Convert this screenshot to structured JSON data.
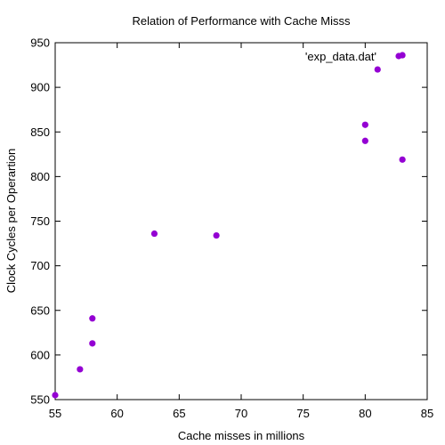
{
  "chart_data": {
    "type": "scatter",
    "title": "Relation of Performance with Cache Misss",
    "xlabel": "Cache misses in millions",
    "ylabel": "Clock Cycles per Operartion",
    "xlim": [
      55,
      85
    ],
    "ylim": [
      550,
      950
    ],
    "xticks": [
      55,
      60,
      65,
      70,
      75,
      80,
      85
    ],
    "yticks": [
      550,
      600,
      650,
      700,
      750,
      800,
      850,
      900,
      950
    ],
    "grid": false,
    "legend_position": "top-right",
    "series": [
      {
        "name": "'exp_data.dat'",
        "color": "#9400d3",
        "points": [
          {
            "x": 55,
            "y": 555
          },
          {
            "x": 57,
            "y": 584
          },
          {
            "x": 58,
            "y": 613
          },
          {
            "x": 58,
            "y": 641
          },
          {
            "x": 63,
            "y": 736
          },
          {
            "x": 68,
            "y": 734
          },
          {
            "x": 80,
            "y": 840
          },
          {
            "x": 80,
            "y": 858
          },
          {
            "x": 81,
            "y": 920
          },
          {
            "x": 83,
            "y": 936
          },
          {
            "x": 83,
            "y": 819
          }
        ]
      }
    ]
  }
}
